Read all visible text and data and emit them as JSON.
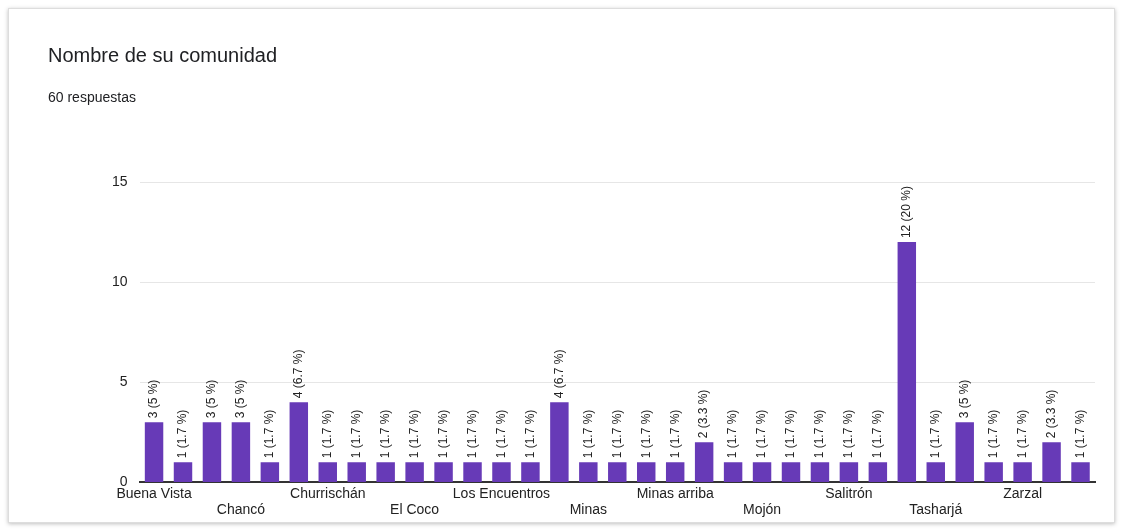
{
  "chart_data": {
    "type": "bar",
    "title": "Nombre de su comunidad",
    "subtitle": "60 respuestas",
    "categories": [
      "Buena Vista",
      null,
      null,
      "Chancó",
      null,
      null,
      "Churrischán",
      null,
      null,
      "El Coco",
      null,
      null,
      "Los Encuentros",
      null,
      null,
      "Minas",
      null,
      null,
      "Minas arriba",
      null,
      null,
      "Mojón",
      null,
      null,
      "Salitrón",
      null,
      null,
      "Tasharjá",
      null,
      null,
      "Zarzal",
      null,
      null
    ],
    "values": [
      3,
      1,
      3,
      3,
      1,
      4,
      1,
      1,
      1,
      1,
      1,
      1,
      1,
      1,
      4,
      1,
      1,
      1,
      1,
      2,
      1,
      1,
      1,
      1,
      1,
      1,
      12,
      1,
      3,
      1,
      1,
      2,
      1
    ],
    "value_labels": [
      "3 (5 %)",
      "1 (1.7 %)",
      "3 (5 %)",
      "3 (5 %)",
      "1 (1.7 %)",
      "4 (6.7 %)",
      "1 (1.7 %)",
      "1 (1.7 %)",
      "1 (1.7 %)",
      "1 (1.7 %)",
      "1 (1.7 %)",
      "1 (1.7 %)",
      "1 (1.7 %)",
      "1 (1.7 %)",
      "4 (6.7 %)",
      "1 (1.7 %)",
      "1 (1.7 %)",
      "1 (1.7 %)",
      "1 (1.7 %)",
      "2 (3.3 %)",
      "1 (1.7 %)",
      "1 (1.7 %)",
      "1 (1.7 %)",
      "1 (1.7 %)",
      "1 (1.7 %)",
      "1 (1.7 %)",
      "12 (20 %)",
      "1 (1.7 %)",
      "3 (5 %)",
      "1 (1.7 %)",
      "1 (1.7 %)",
      "2 (3.3 %)",
      "1 (1.7 %)"
    ],
    "color": "#673ab7",
    "ylim": [
      0,
      15
    ],
    "yticks": [
      0,
      5,
      10,
      15
    ],
    "grid": "y",
    "legend": false
  }
}
